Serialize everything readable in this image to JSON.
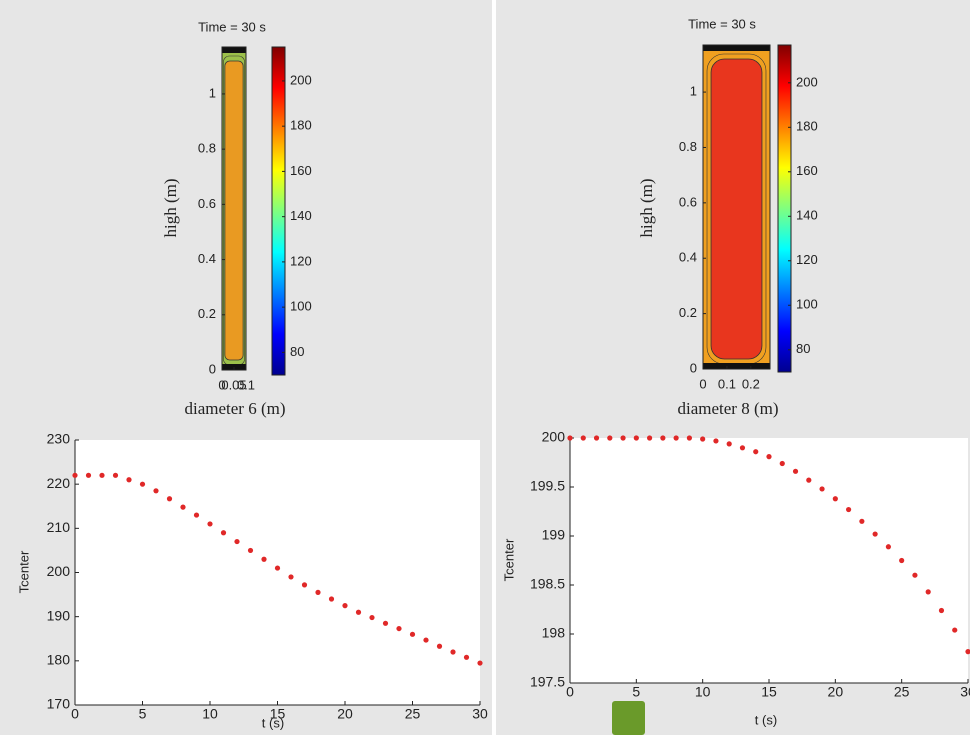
{
  "chart_data": [
    {
      "type": "contour",
      "title": "Time = 30 s",
      "xlabel": "diameter 6 (m)",
      "ylabel": "high (m)",
      "xlim": [
        0,
        0.1
      ],
      "xticks": [
        0,
        0.05,
        0.1
      ],
      "ylim": [
        0,
        1.17
      ],
      "yticks": [
        0,
        0.2,
        0.4,
        0.6,
        0.8,
        1
      ],
      "clim": [
        70,
        215
      ],
      "cticks": [
        80,
        100,
        120,
        140,
        160,
        180,
        200
      ],
      "outer_color": "#9cc04a",
      "inner_color": "#e99a22"
    },
    {
      "type": "contour",
      "title": "Time = 30 s",
      "xlabel": "diameter 8 (m)",
      "ylabel": "high (m)",
      "xlim": [
        0,
        0.28
      ],
      "xticks": [
        0,
        0.1,
        0.2
      ],
      "ylim": [
        0,
        1.17
      ],
      "yticks": [
        0,
        0.2,
        0.4,
        0.6,
        0.8,
        1
      ],
      "clim": [
        70,
        217
      ],
      "cticks": [
        80,
        100,
        120,
        140,
        160,
        180,
        200
      ],
      "outer_color": "#f0a020",
      "inner_color": "#e8361e"
    },
    {
      "type": "scatter",
      "xlabel": "t (s)",
      "ylabel": "Tcenter",
      "color": "#e02828",
      "x": [
        0,
        1,
        2,
        3,
        4,
        5,
        6,
        7,
        8,
        9,
        10,
        11,
        12,
        13,
        14,
        15,
        16,
        17,
        18,
        19,
        20,
        21,
        22,
        23,
        24,
        25,
        26,
        27,
        28,
        29,
        30
      ],
      "values": [
        222,
        222,
        222,
        222,
        221,
        220,
        218.5,
        216.7,
        214.8,
        213,
        211,
        209,
        207,
        205,
        203,
        201,
        199,
        197.2,
        195.5,
        194,
        192.5,
        191,
        189.8,
        188.5,
        187.3,
        186,
        184.7,
        183.3,
        182,
        180.8,
        179.5
      ],
      "xlim": [
        0,
        30
      ],
      "xticks": [
        0,
        5,
        10,
        15,
        20,
        25,
        30
      ],
      "ylim": [
        170,
        230
      ],
      "yticks": [
        170,
        180,
        190,
        200,
        210,
        220,
        230
      ]
    },
    {
      "type": "scatter",
      "xlabel": "t (s)",
      "ylabel": "Tcenter",
      "color": "#e02828",
      "x": [
        0,
        1,
        2,
        3,
        4,
        5,
        6,
        7,
        8,
        9,
        10,
        11,
        12,
        13,
        14,
        15,
        16,
        17,
        18,
        19,
        20,
        21,
        22,
        23,
        24,
        25,
        26,
        27,
        28,
        29,
        30
      ],
      "values": [
        200,
        200,
        200,
        200,
        200,
        200,
        200,
        200,
        200,
        200,
        199.99,
        199.97,
        199.94,
        199.9,
        199.86,
        199.81,
        199.74,
        199.66,
        199.57,
        199.48,
        199.38,
        199.27,
        199.15,
        199.02,
        198.89,
        198.75,
        198.6,
        198.43,
        198.24,
        198.04,
        197.82
      ],
      "xlim": [
        0,
        30
      ],
      "xticks": [
        0,
        5,
        10,
        15,
        20,
        25,
        30
      ],
      "ylim": [
        197.5,
        200
      ],
      "yticks": [
        197.5,
        198,
        198.5,
        199,
        199.5,
        200
      ]
    }
  ]
}
